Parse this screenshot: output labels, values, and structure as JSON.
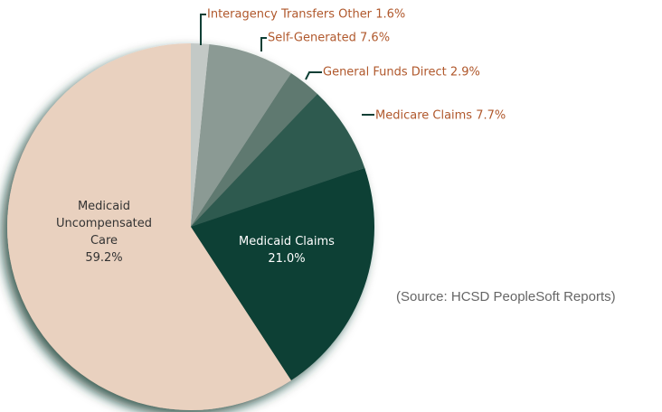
{
  "chart_data": {
    "type": "pie",
    "categories": [
      "Interagency Transfers Other",
      "Self-Generated",
      "General Funds Direct",
      "Medicare Claims",
      "Medicaid Claims",
      "Medicaid Uncompensated Care"
    ],
    "values": [
      1.6,
      7.6,
      2.9,
      7.7,
      21.0,
      59.2
    ],
    "value_labels": [
      "1.6%",
      "7.6%",
      "2.9%",
      "7.7%",
      "21.0%",
      "59.2%"
    ],
    "colors": [
      "#c3c9c6",
      "#8b9a94",
      "#5f7970",
      "#2f5a50",
      "#0e3f35",
      "#e9d1bf"
    ],
    "annotation": "(Source: HCSD PeopleSoft Reports)"
  }
}
